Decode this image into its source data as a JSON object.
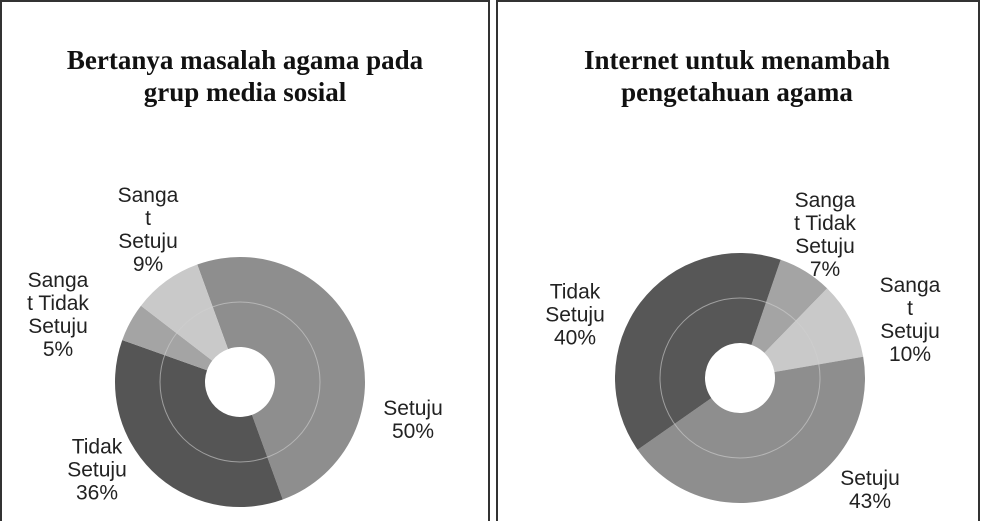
{
  "chart_data": [
    {
      "type": "pie",
      "donut": true,
      "title": "Bertanya masalah agama pada grup media sosial",
      "categories": [
        "Setuju",
        "Tidak Setuju",
        "Sangat Tidak Setuju",
        "Sangat Setuju"
      ],
      "values": [
        50,
        36,
        5,
        9
      ],
      "value_labels": [
        "50%",
        "36%",
        "5%",
        "9%"
      ],
      "colors": [
        "#8e8e8e",
        "#555555",
        "#a4a4a4",
        "#c9c9c9"
      ]
    },
    {
      "type": "pie",
      "donut": true,
      "title": "Internet untuk menambah pengetahuan agama",
      "categories": [
        "Sangat Tidak Setuju",
        "Sangat Setuju",
        "Setuju",
        "Tidak Setuju"
      ],
      "values": [
        7,
        10,
        43,
        40
      ],
      "value_labels": [
        "7%",
        "10%",
        "43%",
        "40%"
      ],
      "colors": [
        "#a4a4a4",
        "#c9c9c9",
        "#8e8e8e",
        "#575757"
      ]
    }
  ]
}
